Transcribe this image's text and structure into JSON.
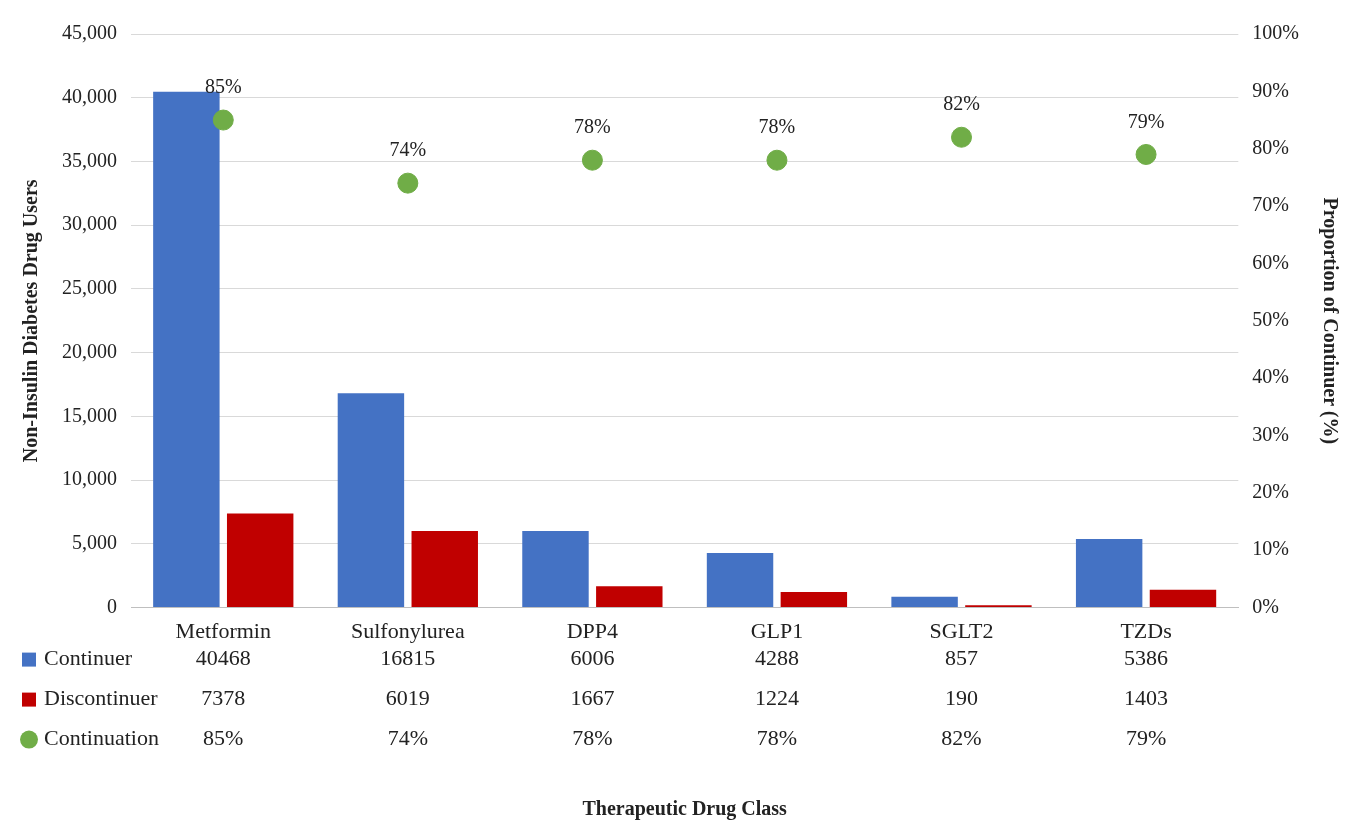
{
  "chart_data": {
    "type": "bar",
    "annotations": [
      "Therapeutic Drug Class"
    ],
    "ylabel": "Non-Insulin Diabetes Drug Users",
    "y2label": "Proportion of Continuer (%)",
    "categories": [
      "Metformin",
      "Sulfonylurea",
      "DPP4",
      "GLP1",
      "SGLT2",
      "TZDs"
    ],
    "series": [
      {
        "name": "Continuer",
        "color": "#4472c4",
        "values": [
          40468,
          16815,
          6006,
          4288,
          857,
          5386
        ],
        "value_labels": [
          "40468",
          "16815",
          "6006",
          "4288",
          "857",
          "5386"
        ]
      },
      {
        "name": "Discontinuer",
        "color": "#c00000",
        "values": [
          7378,
          6019,
          1667,
          1224,
          190,
          1403
        ],
        "value_labels": [
          "7378",
          "6019",
          "1667",
          "1224",
          "190",
          "1403"
        ]
      },
      {
        "name": "Continuation",
        "type": "scatter",
        "axis": "y2",
        "color": "#70ad47",
        "values": [
          85,
          74,
          78,
          78,
          82,
          79
        ],
        "value_labels": [
          "85%",
          "74%",
          "78%",
          "78%",
          "82%",
          "79%"
        ]
      }
    ],
    "ylim": [
      0,
      45000
    ],
    "yticks": [
      0,
      {
        "value": 5000,
        "label": "5,000"
      },
      {
        "value": 10000,
        "label": "10,000"
      },
      {
        "value": 15000,
        "label": "15,000"
      },
      {
        "value": 20000,
        "label": "20,000"
      },
      {
        "value": 25000,
        "label": "25,000"
      },
      {
        "value": 30000,
        "label": "30,000"
      },
      {
        "value": 35000,
        "label": "35,000"
      },
      {
        "value": 40000,
        "label": "40,000"
      },
      {
        "value": 45000,
        "label": "45,000"
      }
    ],
    "y2lim": [
      0,
      100
    ],
    "y2ticks": [
      {
        "value": 0,
        "label": "0%"
      },
      {
        "value": 10,
        "label": "10%"
      },
      {
        "value": 20,
        "label": "20%"
      },
      {
        "value": 30,
        "label": "30%"
      },
      {
        "value": 40,
        "label": "40%"
      },
      {
        "value": 50,
        "label": "50%"
      },
      {
        "value": 60,
        "label": "60%"
      },
      {
        "value": 70,
        "label": "70%"
      },
      {
        "value": 80,
        "label": "80%"
      },
      {
        "value": 90,
        "label": "90%"
      },
      {
        "value": 100,
        "label": "100%"
      }
    ],
    "grid": "y",
    "legend": "bottom",
    "marker": "circle"
  }
}
